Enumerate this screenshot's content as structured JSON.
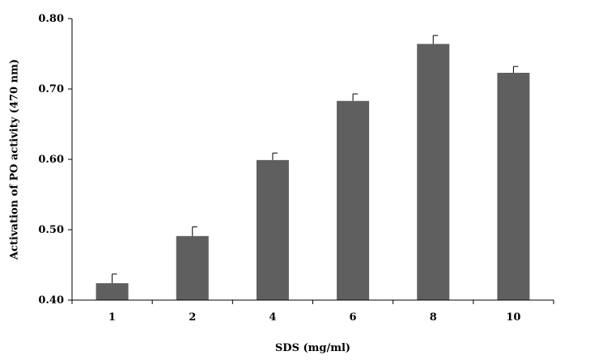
{
  "chart_data": {
    "type": "bar",
    "title": "",
    "xlabel": "SDS (mg/ml)",
    "ylabel": "Activation of PO activity (470 nm)",
    "categories": [
      "1",
      "2",
      "4",
      "6",
      "8",
      "10"
    ],
    "values": [
      0.424,
      0.491,
      0.599,
      0.683,
      0.764,
      0.723
    ],
    "error": [
      0.013,
      0.013,
      0.01,
      0.01,
      0.012,
      0.009
    ],
    "ylim": [
      0.4,
      0.8
    ],
    "yticks": [
      "0.40",
      "0.50",
      "0.60",
      "0.70",
      "0.80"
    ],
    "grid": false,
    "bar_color": "#5f5f5f"
  }
}
